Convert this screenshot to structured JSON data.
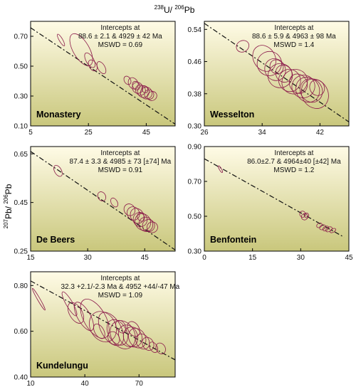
{
  "figure": {
    "top_axis_title": {
      "sup1": "238",
      "base1": "U/ ",
      "sup2": "206",
      "base2": "Pb"
    },
    "left_axis_title": {
      "sup1": "207",
      "base1": "Pb/ ",
      "sup2": "206",
      "base2": "Pb"
    }
  },
  "colors": {
    "ellipse_stroke": "#8b1a4a",
    "line": "#111111",
    "panel_gradient_top": "#fffbe6",
    "panel_gradient_bottom": "#c9c77c"
  },
  "chart_data": [
    {
      "type": "scatter",
      "name": "Monastery",
      "intercepts_title": "Intercepts at",
      "intercepts": "88.6 ± 2.1 & 4929 ± 42  Ma",
      "mswd": "MSWD = 0.69",
      "xlim": [
        5,
        55
      ],
      "ylim": [
        0.1,
        0.8
      ],
      "xticks": [
        5,
        25,
        45
      ],
      "xtick_labels": [
        "5",
        "25",
        "45"
      ],
      "yticks": [
        0.1,
        0.3,
        0.5,
        0.7
      ],
      "ytick_labels": [
        "0.10",
        "0.30",
        "0.50",
        "0.70"
      ],
      "line": {
        "x1": 5,
        "y1": 0.757,
        "x2": 55,
        "y2": 0.112
      },
      "ellipses": [
        {
          "x": 15.5,
          "y": 0.675,
          "rx": 0.6,
          "ry": 0.045
        },
        {
          "x": 22.5,
          "y": 0.61,
          "rx": 2.8,
          "ry": 0.12
        },
        {
          "x": 25.5,
          "y": 0.54,
          "rx": 1.3,
          "ry": 0.055
        },
        {
          "x": 26.5,
          "y": 0.505,
          "rx": 1.3,
          "ry": 0.04
        },
        {
          "x": 29.5,
          "y": 0.49,
          "rx": 1.2,
          "ry": 0.045
        },
        {
          "x": 38.5,
          "y": 0.405,
          "rx": 1.1,
          "ry": 0.03
        },
        {
          "x": 40.5,
          "y": 0.385,
          "rx": 1.6,
          "ry": 0.04
        },
        {
          "x": 42.0,
          "y": 0.355,
          "rx": 1.8,
          "ry": 0.038
        },
        {
          "x": 43.0,
          "y": 0.34,
          "rx": 1.7,
          "ry": 0.035
        },
        {
          "x": 44.0,
          "y": 0.33,
          "rx": 2.0,
          "ry": 0.04
        },
        {
          "x": 45.0,
          "y": 0.32,
          "rx": 2.0,
          "ry": 0.04
        },
        {
          "x": 46.0,
          "y": 0.31,
          "rx": 1.6,
          "ry": 0.032
        },
        {
          "x": 47.0,
          "y": 0.3,
          "rx": 1.7,
          "ry": 0.03
        },
        {
          "x": 44.5,
          "y": 0.345,
          "rx": 1.0,
          "ry": 0.025
        },
        {
          "x": 41.5,
          "y": 0.37,
          "rx": 1.2,
          "ry": 0.03
        }
      ]
    },
    {
      "type": "scatter",
      "name": "Wesselton",
      "intercepts_title": "Intercepts at",
      "intercepts": "88.6 ± 5.9 & 4963 ± 98  Ma",
      "mswd": "MSWD = 1.4",
      "xlim": [
        26,
        46
      ],
      "ylim": [
        0.3,
        0.56
      ],
      "xticks": [
        26,
        34,
        42
      ],
      "xtick_labels": [
        "26",
        "34",
        "42"
      ],
      "yticks": [
        0.3,
        0.38,
        0.46,
        0.54
      ],
      "ytick_labels": [
        "0.30",
        "0.38",
        "0.46",
        "0.54"
      ],
      "line": {
        "x1": 26,
        "y1": 0.555,
        "x2": 46,
        "y2": 0.31
      },
      "ellipses": [
        {
          "x": 31.3,
          "y": 0.498,
          "rx": 0.9,
          "ry": 0.014
        },
        {
          "x": 34.3,
          "y": 0.468,
          "rx": 1.5,
          "ry": 0.034
        },
        {
          "x": 35.0,
          "y": 0.455,
          "rx": 1.7,
          "ry": 0.03
        },
        {
          "x": 35.8,
          "y": 0.44,
          "rx": 1.4,
          "ry": 0.028
        },
        {
          "x": 36.5,
          "y": 0.425,
          "rx": 1.7,
          "ry": 0.03
        },
        {
          "x": 37.0,
          "y": 0.43,
          "rx": 1.1,
          "ry": 0.022
        },
        {
          "x": 37.8,
          "y": 0.413,
          "rx": 1.5,
          "ry": 0.028
        },
        {
          "x": 38.5,
          "y": 0.41,
          "rx": 1.8,
          "ry": 0.03
        },
        {
          "x": 39.0,
          "y": 0.405,
          "rx": 1.2,
          "ry": 0.025
        },
        {
          "x": 39.7,
          "y": 0.398,
          "rx": 1.6,
          "ry": 0.028
        },
        {
          "x": 40.3,
          "y": 0.39,
          "rx": 1.6,
          "ry": 0.032
        },
        {
          "x": 40.8,
          "y": 0.388,
          "rx": 1.5,
          "ry": 0.03
        },
        {
          "x": 41.3,
          "y": 0.38,
          "rx": 1.8,
          "ry": 0.038
        },
        {
          "x": 41.6,
          "y": 0.395,
          "rx": 1.0,
          "ry": 0.02
        },
        {
          "x": 36.0,
          "y": 0.447,
          "rx": 0.9,
          "ry": 0.018
        }
      ]
    },
    {
      "type": "scatter",
      "name": "De Beers",
      "intercepts_title": "Intercepts at",
      "intercepts": "87.4 ± 3.3 & 4985 ± 73  [±74]  Ma",
      "mswd": "MSWD = 0.91",
      "xlim": [
        15,
        53
      ],
      "ylim": [
        0.25,
        0.68
      ],
      "xticks": [
        15,
        30,
        45
      ],
      "xtick_labels": [
        "15",
        "30",
        "45"
      ],
      "yticks": [
        0.25,
        0.45,
        0.65
      ],
      "ytick_labels": [
        "0.25",
        "0.45",
        "0.65"
      ],
      "line": {
        "x1": 15,
        "y1": 0.66,
        "x2": 53,
        "y2": 0.255
      },
      "ellipses": [
        {
          "x": 22.2,
          "y": 0.58,
          "rx": 0.9,
          "ry": 0.025
        },
        {
          "x": 33.7,
          "y": 0.475,
          "rx": 1.0,
          "ry": 0.02
        },
        {
          "x": 37.0,
          "y": 0.45,
          "rx": 0.8,
          "ry": 0.02
        },
        {
          "x": 41.0,
          "y": 0.42,
          "rx": 1.4,
          "ry": 0.025
        },
        {
          "x": 42.0,
          "y": 0.405,
          "rx": 1.6,
          "ry": 0.028
        },
        {
          "x": 43.0,
          "y": 0.395,
          "rx": 1.7,
          "ry": 0.032
        },
        {
          "x": 43.8,
          "y": 0.38,
          "rx": 1.8,
          "ry": 0.03
        },
        {
          "x": 44.5,
          "y": 0.37,
          "rx": 2.0,
          "ry": 0.035
        },
        {
          "x": 45.3,
          "y": 0.36,
          "rx": 1.8,
          "ry": 0.03
        },
        {
          "x": 46.0,
          "y": 0.355,
          "rx": 1.6,
          "ry": 0.025
        },
        {
          "x": 47.0,
          "y": 0.348,
          "rx": 1.4,
          "ry": 0.022
        },
        {
          "x": 44.0,
          "y": 0.39,
          "rx": 0.9,
          "ry": 0.018
        }
      ]
    },
    {
      "type": "scatter",
      "name": "Benfontein",
      "intercepts_title": "Intercepts at",
      "intercepts": "86.0±2.7 & 4964±40   [±42]  Ma",
      "mswd": "MSWD = 1.2",
      "xlim": [
        0,
        45
      ],
      "ylim": [
        0.3,
        0.9
      ],
      "xticks": [
        0,
        15,
        30,
        45
      ],
      "xtick_labels": [
        "0",
        "15",
        "30",
        "45"
      ],
      "yticks": [
        0.3,
        0.5,
        0.7,
        0.9
      ],
      "ytick_labels": [
        "0.30",
        "0.50",
        "0.70",
        "0.90"
      ],
      "line": {
        "x1": 0,
        "y1": 0.83,
        "x2": 43.5,
        "y2": 0.38
      },
      "ellipses": [
        {
          "x": 5.0,
          "y": 0.77,
          "rx": 0.22,
          "ry": 0.022
        },
        {
          "x": 30.6,
          "y": 0.512,
          "rx": 0.9,
          "ry": 0.018
        },
        {
          "x": 31.2,
          "y": 0.497,
          "rx": 1.0,
          "ry": 0.018
        },
        {
          "x": 31.8,
          "y": 0.505,
          "rx": 0.7,
          "ry": 0.014
        },
        {
          "x": 35.8,
          "y": 0.448,
          "rx": 0.9,
          "ry": 0.012
        },
        {
          "x": 36.8,
          "y": 0.437,
          "rx": 1.0,
          "ry": 0.013
        },
        {
          "x": 37.8,
          "y": 0.43,
          "rx": 1.0,
          "ry": 0.012
        },
        {
          "x": 38.8,
          "y": 0.425,
          "rx": 1.1,
          "ry": 0.012
        },
        {
          "x": 40.0,
          "y": 0.418,
          "rx": 1.0,
          "ry": 0.01
        }
      ]
    },
    {
      "type": "scatter",
      "name": "Kundelungu",
      "intercepts_title": "Intercepts at",
      "intercepts": "32.3 +2.1/-2.3 Ma & 4952 +44/-47 Ma",
      "mswd": "MSWD = 1.09",
      "xlim": [
        10,
        90
      ],
      "ylim": [
        0.4,
        0.86
      ],
      "xticks": [
        10,
        40,
        70
      ],
      "xtick_labels": [
        "10",
        "40",
        "70"
      ],
      "yticks": [
        0.4,
        0.6,
        0.8
      ],
      "ytick_labels": [
        "0.40",
        "0.60",
        "0.80"
      ],
      "line": {
        "x1": 10,
        "y1": 0.82,
        "x2": 90,
        "y2": 0.475
      },
      "ellipses": [
        {
          "x": 14.5,
          "y": 0.74,
          "rx": 0.7,
          "ry": 0.055
        },
        {
          "x": 31.5,
          "y": 0.72,
          "rx": 1.8,
          "ry": 0.06
        },
        {
          "x": 35.0,
          "y": 0.68,
          "rx": 3.5,
          "ry": 0.05
        },
        {
          "x": 39.5,
          "y": 0.665,
          "rx": 3.5,
          "ry": 0.07
        },
        {
          "x": 45.5,
          "y": 0.655,
          "rx": 6.0,
          "ry": 0.095
        },
        {
          "x": 50.0,
          "y": 0.62,
          "rx": 7.0,
          "ry": 0.07
        },
        {
          "x": 54.5,
          "y": 0.61,
          "rx": 5.5,
          "ry": 0.08
        },
        {
          "x": 58.0,
          "y": 0.595,
          "rx": 5.0,
          "ry": 0.06
        },
        {
          "x": 61.0,
          "y": 0.585,
          "rx": 6.5,
          "ry": 0.065
        },
        {
          "x": 64.0,
          "y": 0.58,
          "rx": 5.0,
          "ry": 0.05
        },
        {
          "x": 66.5,
          "y": 0.575,
          "rx": 5.0,
          "ry": 0.045
        },
        {
          "x": 69.0,
          "y": 0.57,
          "rx": 4.5,
          "ry": 0.045
        },
        {
          "x": 72.0,
          "y": 0.555,
          "rx": 3.5,
          "ry": 0.035
        },
        {
          "x": 75.0,
          "y": 0.545,
          "rx": 3.0,
          "ry": 0.03
        },
        {
          "x": 60.0,
          "y": 0.62,
          "rx": 2.5,
          "ry": 0.03
        },
        {
          "x": 56.0,
          "y": 0.57,
          "rx": 3.0,
          "ry": 0.03
        },
        {
          "x": 67.0,
          "y": 0.61,
          "rx": 3.0,
          "ry": 0.035
        },
        {
          "x": 48.0,
          "y": 0.6,
          "rx": 2.5,
          "ry": 0.035
        },
        {
          "x": 82.0,
          "y": 0.525,
          "rx": 2.5,
          "ry": 0.025
        },
        {
          "x": 78.0,
          "y": 0.53,
          "rx": 2.0,
          "ry": 0.025
        }
      ]
    }
  ]
}
